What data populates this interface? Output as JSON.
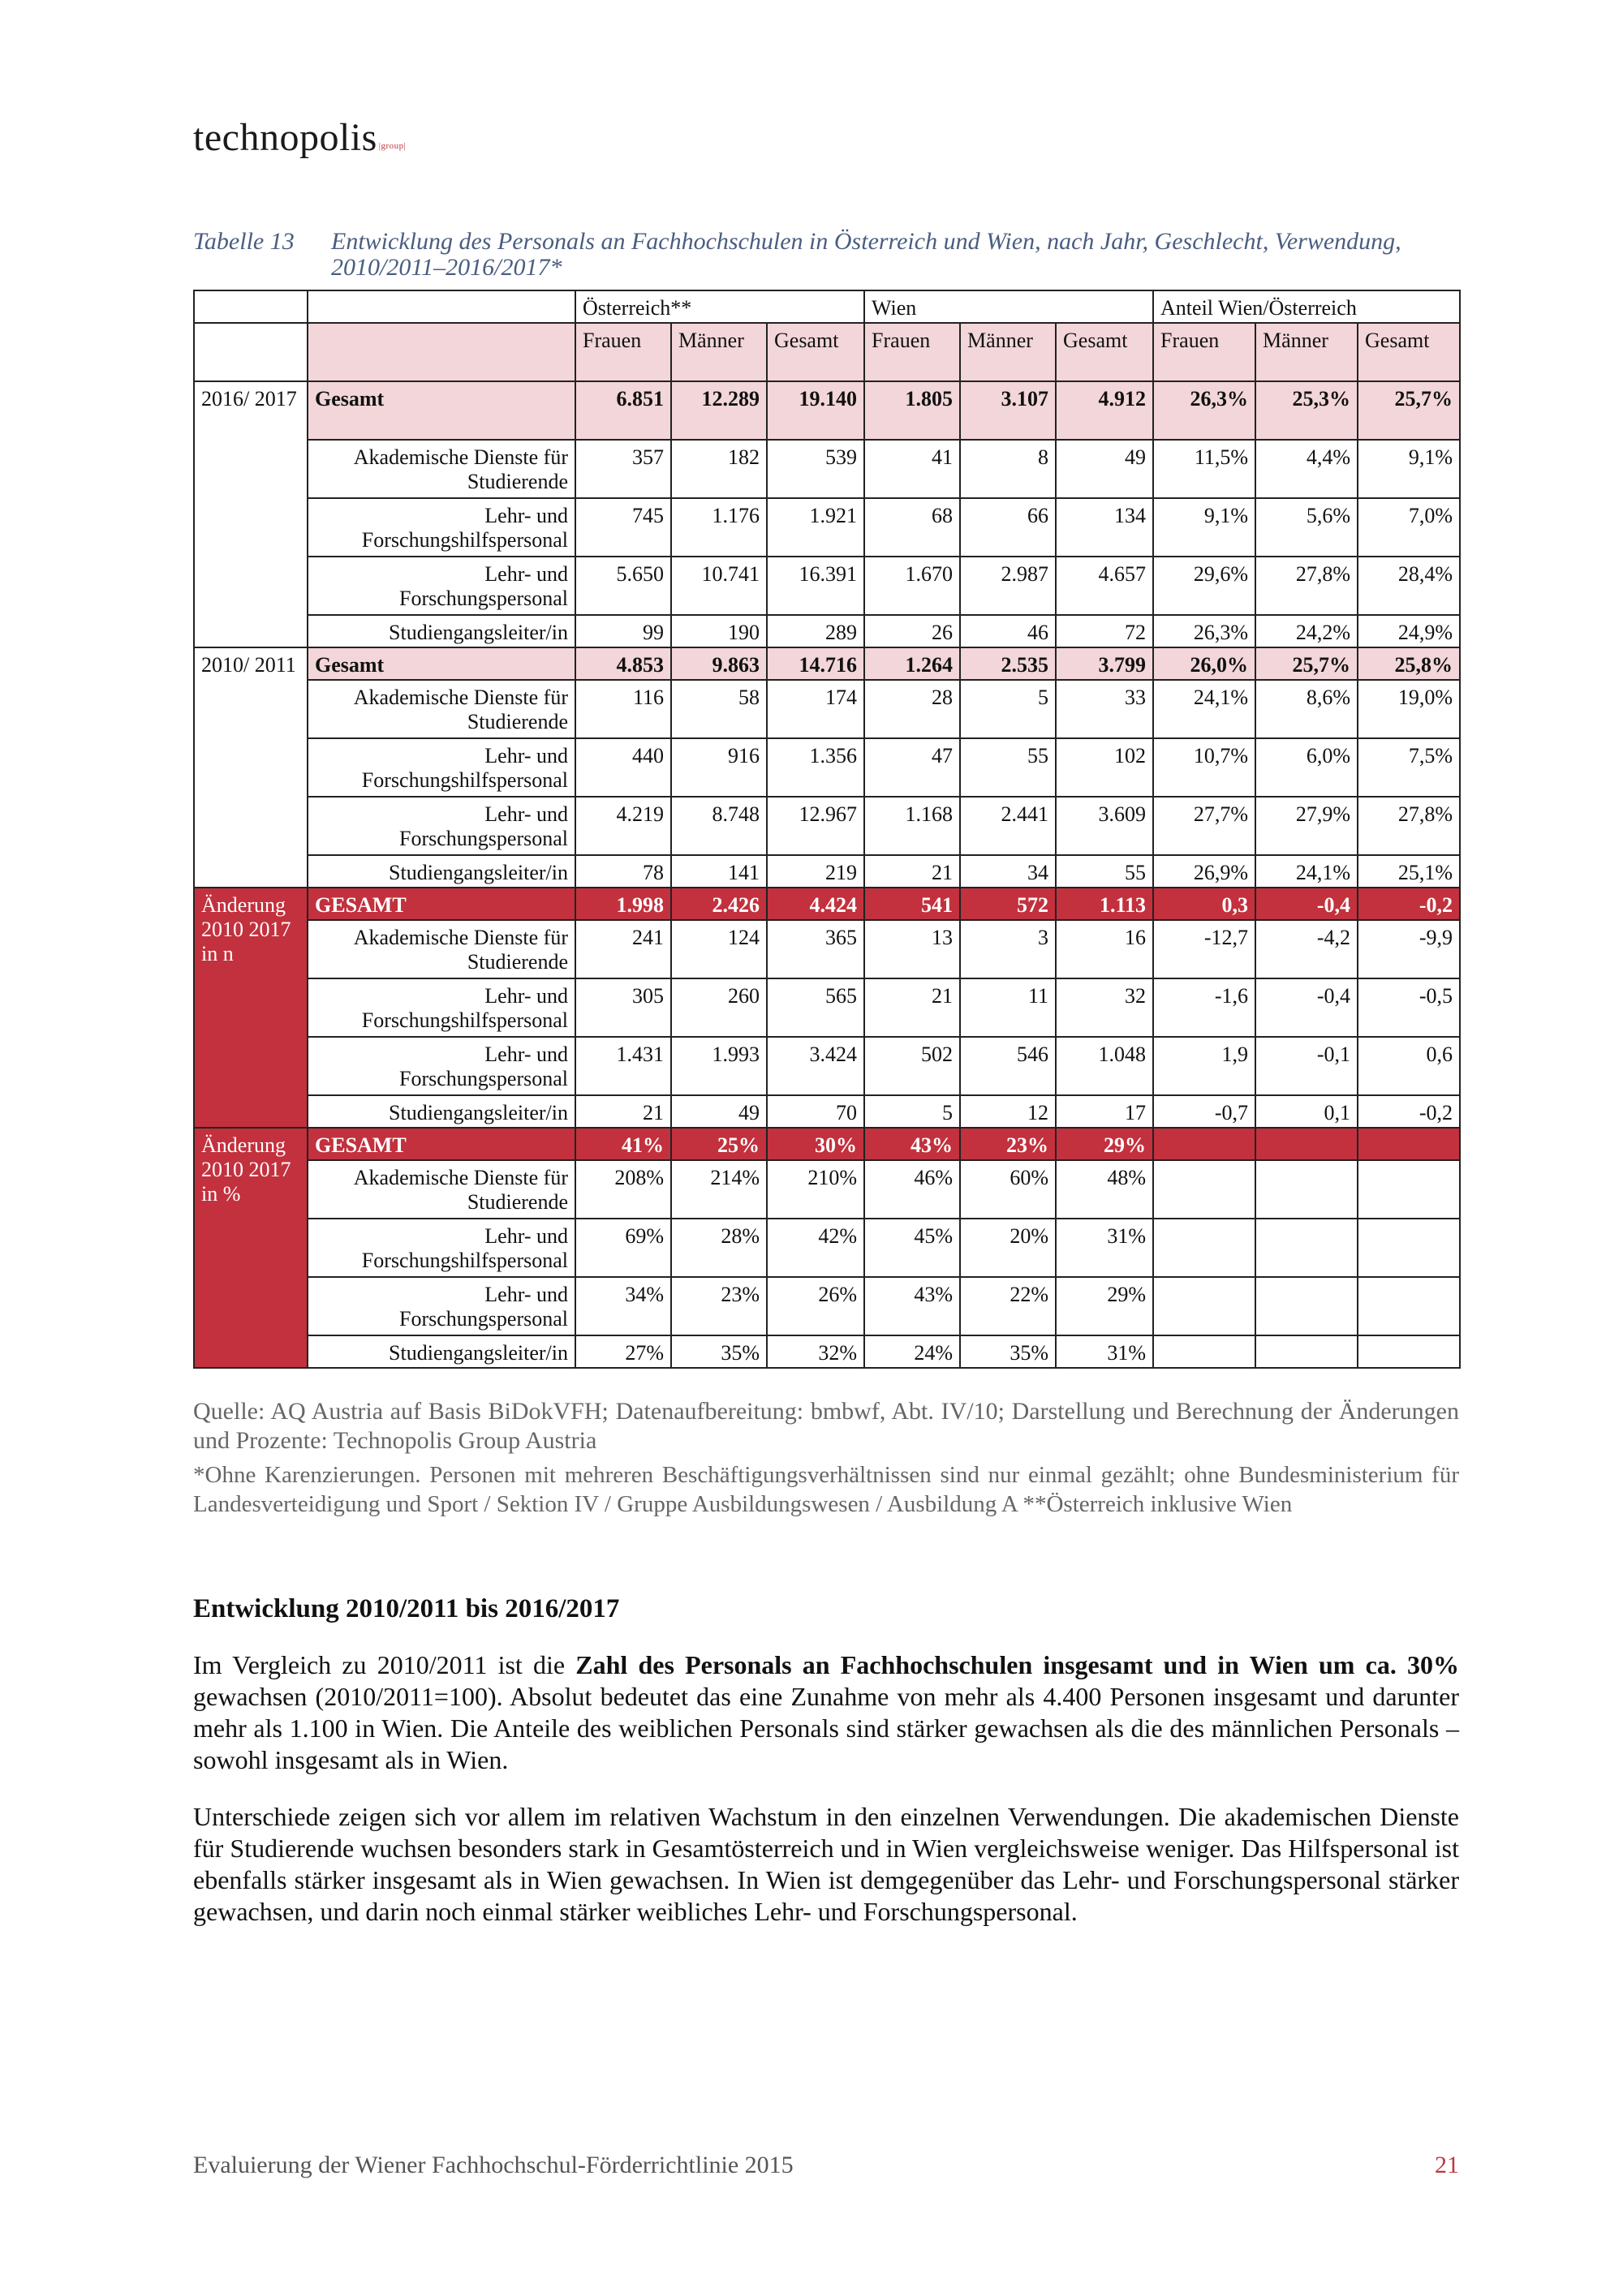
{
  "header": {
    "logo_main": "technopolis",
    "logo_suffix": "|group|"
  },
  "caption": {
    "number": "Tabelle 13",
    "text": "Entwicklung des Personals an Fachhochschulen in Österreich und Wien, nach Jahr, Geschlecht, Verwendung, 2010/2011–2016/2017*"
  },
  "table": {
    "groups": [
      "Österreich**",
      "Wien",
      "Anteil Wien/Österreich"
    ],
    "subheaders": [
      "Frauen",
      "Männer",
      "Gesamt",
      "Frauen",
      "Männer",
      "Gesamt",
      "Frauen",
      "Männer",
      "Gesamt"
    ],
    "sections": [
      {
        "label": "2016/ 2017",
        "rows": [
          {
            "label": "Gesamt",
            "values": [
              "6.851",
              "12.289",
              "19.140",
              "1.805",
              "3.107",
              "4.912",
              "26,3%",
              "25,3%",
              "25,7%"
            ]
          },
          {
            "label": "Akademische Dienste für Studierende",
            "values": [
              "357",
              "182",
              "539",
              "41",
              "8",
              "49",
              "11,5%",
              "4,4%",
              "9,1%"
            ]
          },
          {
            "label": "Lehr- und Forschungshilfspersonal",
            "values": [
              "745",
              "1.176",
              "1.921",
              "68",
              "66",
              "134",
              "9,1%",
              "5,6%",
              "7,0%"
            ]
          },
          {
            "label": "Lehr- und Forschungspersonal",
            "values": [
              "5.650",
              "10.741",
              "16.391",
              "1.670",
              "2.987",
              "4.657",
              "29,6%",
              "27,8%",
              "28,4%"
            ]
          },
          {
            "label": "Studiengangsleiter/in",
            "values": [
              "99",
              "190",
              "289",
              "26",
              "46",
              "72",
              "26,3%",
              "24,2%",
              "24,9%"
            ]
          }
        ]
      },
      {
        "label": "2010/ 2011",
        "rows": [
          {
            "label": "Gesamt",
            "values": [
              "4.853",
              "9.863",
              "14.716",
              "1.264",
              "2.535",
              "3.799",
              "26,0%",
              "25,7%",
              "25,8%"
            ]
          },
          {
            "label": "Akademische Dienste für Studierende",
            "values": [
              "116",
              "58",
              "174",
              "28",
              "5",
              "33",
              "24,1%",
              "8,6%",
              "19,0%"
            ]
          },
          {
            "label": "Lehr- und Forschungshilfspersonal",
            "values": [
              "440",
              "916",
              "1.356",
              "47",
              "55",
              "102",
              "10,7%",
              "6,0%",
              "7,5%"
            ]
          },
          {
            "label": "Lehr- und Forschungspersonal",
            "values": [
              "4.219",
              "8.748",
              "12.967",
              "1.168",
              "2.441",
              "3.609",
              "27,7%",
              "27,9%",
              "27,8%"
            ]
          },
          {
            "label": "Studiengangsleiter/in",
            "values": [
              "78",
              "141",
              "219",
              "21",
              "34",
              "55",
              "26,9%",
              "24,1%",
              "25,1%"
            ]
          }
        ]
      },
      {
        "label": "Änderung 2010 2017 in n",
        "rows": [
          {
            "label": "GESAMT",
            "values": [
              "1.998",
              "2.426",
              "4.424",
              "541",
              "572",
              "1.113",
              "0,3",
              "-0,4",
              "-0,2"
            ]
          },
          {
            "label": "Akademische Dienste für Studierende",
            "values": [
              "241",
              "124",
              "365",
              "13",
              "3",
              "16",
              "-12,7",
              "-4,2",
              "-9,9"
            ]
          },
          {
            "label": "Lehr- und Forschungshilfspersonal",
            "values": [
              "305",
              "260",
              "565",
              "21",
              "11",
              "32",
              "-1,6",
              "-0,4",
              "-0,5"
            ]
          },
          {
            "label": "Lehr- und Forschungspersonal",
            "values": [
              "1.431",
              "1.993",
              "3.424",
              "502",
              "546",
              "1.048",
              "1,9",
              "-0,1",
              "0,6"
            ]
          },
          {
            "label": "Studiengangsleiter/in",
            "values": [
              "21",
              "49",
              "70",
              "5",
              "12",
              "17",
              "-0,7",
              "0,1",
              "-0,2"
            ]
          }
        ]
      },
      {
        "label": "Änderung 2010 2017 in %",
        "rows": [
          {
            "label": "GESAMT",
            "values": [
              "41%",
              "25%",
              "30%",
              "43%",
              "23%",
              "29%",
              "",
              "",
              ""
            ]
          },
          {
            "label": "Akademische Dienste für Studierende",
            "values": [
              "208%",
              "214%",
              "210%",
              "46%",
              "60%",
              "48%",
              "",
              "",
              ""
            ]
          },
          {
            "label": "Lehr- und Forschungshilfspersonal",
            "values": [
              "69%",
              "28%",
              "42%",
              "45%",
              "20%",
              "31%",
              "",
              "",
              ""
            ]
          },
          {
            "label": "Lehr- und Forschungspersonal",
            "values": [
              "34%",
              "23%",
              "26%",
              "43%",
              "22%",
              "29%",
              "",
              "",
              ""
            ]
          },
          {
            "label": "Studiengangsleiter/in",
            "values": [
              "27%",
              "35%",
              "32%",
              "24%",
              "35%",
              "31%",
              "",
              "",
              ""
            ]
          }
        ]
      }
    ]
  },
  "source": "Quelle: AQ Austria auf Basis BiDokVFH; Datenaufbereitung: bmbwf, Abt. IV/10; Darstellung und Berechnung der Änderungen und Prozente: Technopolis Group Austria",
  "footnote": "*Ohne Karenzierungen. Personen mit mehreren Beschäftigungsverhältnissen sind nur einmal gezählt; ohne Bundesministerium für Landesverteidigung und Sport / Sektion IV / Gruppe Ausbildungswesen / Ausbildung A **Österreich inklusive Wien",
  "section": {
    "heading": "Entwicklung 2010/2011 bis 2016/2017",
    "p1_a": "Im Vergleich zu 2010/2011 ist die ",
    "p1_bold": "Zahl des Personals an Fachhochschulen insgesamt und in Wien um ca. 30%",
    "p1_b": " gewachsen (2010/2011=100). Absolut bedeutet das eine Zunahme von mehr als 4.400 Personen insgesamt und darunter mehr als 1.100 in Wien. Die Anteile des weiblichen Personals sind stärker gewachsen als die des männlichen Personals – sowohl insgesamt als in Wien.",
    "p2": "Unterschiede zeigen sich vor allem im relativen Wachstum in den einzelnen Verwendungen. Die akademischen Dienste für Studierende wuchsen besonders stark in Gesamtösterreich und in Wien vergleichsweise weniger. Das Hilfspersonal ist ebenfalls stärker insgesamt als in Wien gewachsen. In Wien ist demgegenüber das Lehr- und Forschungspersonal stärker gewachsen, und darin noch einmal stärker weibliches Lehr- und Forschungspersonal."
  },
  "footer": {
    "title": "Evaluierung der Wiener Fachhochschul-Förderrichtlinie 2015",
    "page": "21"
  }
}
